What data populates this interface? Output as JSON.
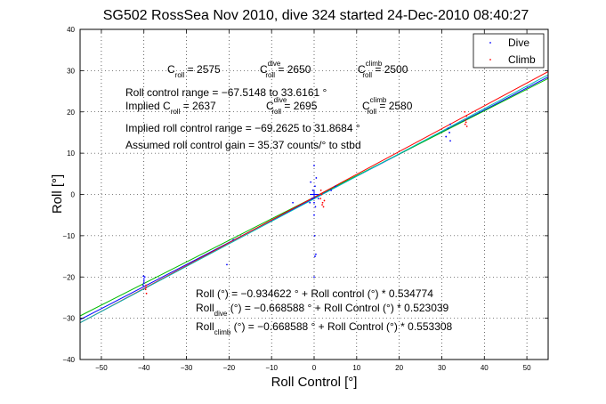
{
  "chart_data": {
    "type": "scatter",
    "title": "SG502 RossSea Nov 2010, dive 324 started 24-Dec-2010 08:40:27",
    "xlabel": "Roll Control [°]",
    "ylabel": "Roll [°]",
    "xlim": [
      -55,
      55
    ],
    "ylim": [
      -40,
      40
    ],
    "xticks": [
      -50,
      -40,
      -30,
      -20,
      -10,
      0,
      10,
      20,
      30,
      40,
      50
    ],
    "yticks": [
      -40,
      -30,
      -20,
      -10,
      0,
      10,
      20,
      30,
      40
    ],
    "xtick_labels": [
      "−50",
      "−40",
      "−30",
      "−20",
      "−10",
      "0",
      "10",
      "20",
      "30",
      "40",
      "50"
    ],
    "ytick_labels": [
      "−40",
      "−30",
      "−20",
      "−10",
      "0",
      "10",
      "20",
      "30",
      "40"
    ],
    "grid": true,
    "legend": "top-right",
    "series": [
      {
        "name": "Dive",
        "color": "#0000ff",
        "points": [
          [
            -40,
            -21
          ],
          [
            -40,
            -20.5
          ],
          [
            -40,
            -21.5
          ],
          [
            -40.2,
            -22
          ],
          [
            -39.8,
            -20
          ],
          [
            -40.1,
            -19.8
          ],
          [
            -0.5,
            -1
          ],
          [
            -0.3,
            1
          ],
          [
            0,
            -2
          ],
          [
            0.2,
            2
          ],
          [
            0,
            -5
          ],
          [
            0.1,
            -10
          ],
          [
            0.2,
            -15
          ],
          [
            0,
            -20
          ],
          [
            0.3,
            -3
          ],
          [
            0.5,
            4
          ],
          [
            -0.8,
            3
          ],
          [
            0,
            7
          ],
          [
            1,
            -1
          ],
          [
            -1,
            -2
          ],
          [
            0.4,
            -14.5
          ],
          [
            5,
            2
          ],
          [
            4,
            1
          ],
          [
            -5,
            -2
          ],
          [
            -19,
            -11
          ],
          [
            -20.5,
            -17
          ],
          [
            31,
            14
          ],
          [
            31.5,
            16
          ],
          [
            32,
            17
          ],
          [
            31.8,
            15
          ],
          [
            32,
            13
          ]
        ]
      },
      {
        "name": "Climb",
        "color": "#ff0000",
        "points": [
          [
            -39.5,
            -22
          ],
          [
            -39.6,
            -23
          ],
          [
            -39.4,
            -24
          ],
          [
            -39.5,
            -22.5
          ],
          [
            1.5,
            -1
          ],
          [
            1.8,
            0
          ],
          [
            2,
            -2
          ],
          [
            2.2,
            -3
          ],
          [
            1.6,
            1
          ],
          [
            2.4,
            -1.5
          ],
          [
            1.9,
            -2.5
          ],
          [
            35.5,
            17
          ],
          [
            35.6,
            18
          ],
          [
            35.8,
            19
          ],
          [
            35.7,
            17.5
          ],
          [
            35.4,
            20
          ],
          [
            35.9,
            16.5
          ]
        ]
      }
    ],
    "fit_lines": [
      {
        "color": "#0000ff",
        "intercept": -0.934622,
        "slope": 0.534774
      },
      {
        "color": "#00bb00",
        "intercept": -0.668588,
        "slope": 0.523039
      },
      {
        "color": "#ff0000",
        "intercept": -0.668588,
        "slope": 0.553308
      },
      {
        "color": "#00bbbb",
        "intercept": -1.05,
        "slope": 0.546
      }
    ],
    "center_marker": {
      "x": 0,
      "y": 0,
      "color": "#0000ff"
    },
    "annotations": {
      "c_roll": {
        "main": "C",
        "sub": "roll",
        "eq": " = 2575"
      },
      "c_roll_dive": {
        "main": "C",
        "sup": "dive",
        "sub": "roll",
        "eq": " = 2650"
      },
      "c_roll_climb": {
        "main": "C",
        "sup": "climb",
        "sub": "roll",
        "eq": " = 2500"
      },
      "roll_control_range": "Roll control range = −67.5148 to 33.6161 °",
      "implied_prefix": "Implied C",
      "implied_sub": "roll",
      "implied_eq": " = 2637",
      "implied_c_dive": {
        "main": "C",
        "sup": "dive",
        "sub": "roll",
        "eq": " = 2695"
      },
      "implied_c_climb": {
        "main": "C",
        "sup": "climb",
        "sub": "roll",
        "eq": " = 2580"
      },
      "implied_range": "Implied roll control range = −69.2625 to 31.8684 °",
      "gain": "Assumed roll control gain = 35.37 counts/° to stbd",
      "fit_all": "Roll (°) = −0.934622 ° + Roll control (°) * 0.534774",
      "fit_dive_main": "Roll",
      "fit_dive_sub": "dive",
      "fit_dive_rest": " (°) = −0.668588 ° + Roll Control (°) * 0.523039",
      "fit_climb_main": "Roll",
      "fit_climb_sub": "climb",
      "fit_climb_rest": " (°) = −0.668588 ° + Roll Control (°) * 0.553308"
    }
  }
}
